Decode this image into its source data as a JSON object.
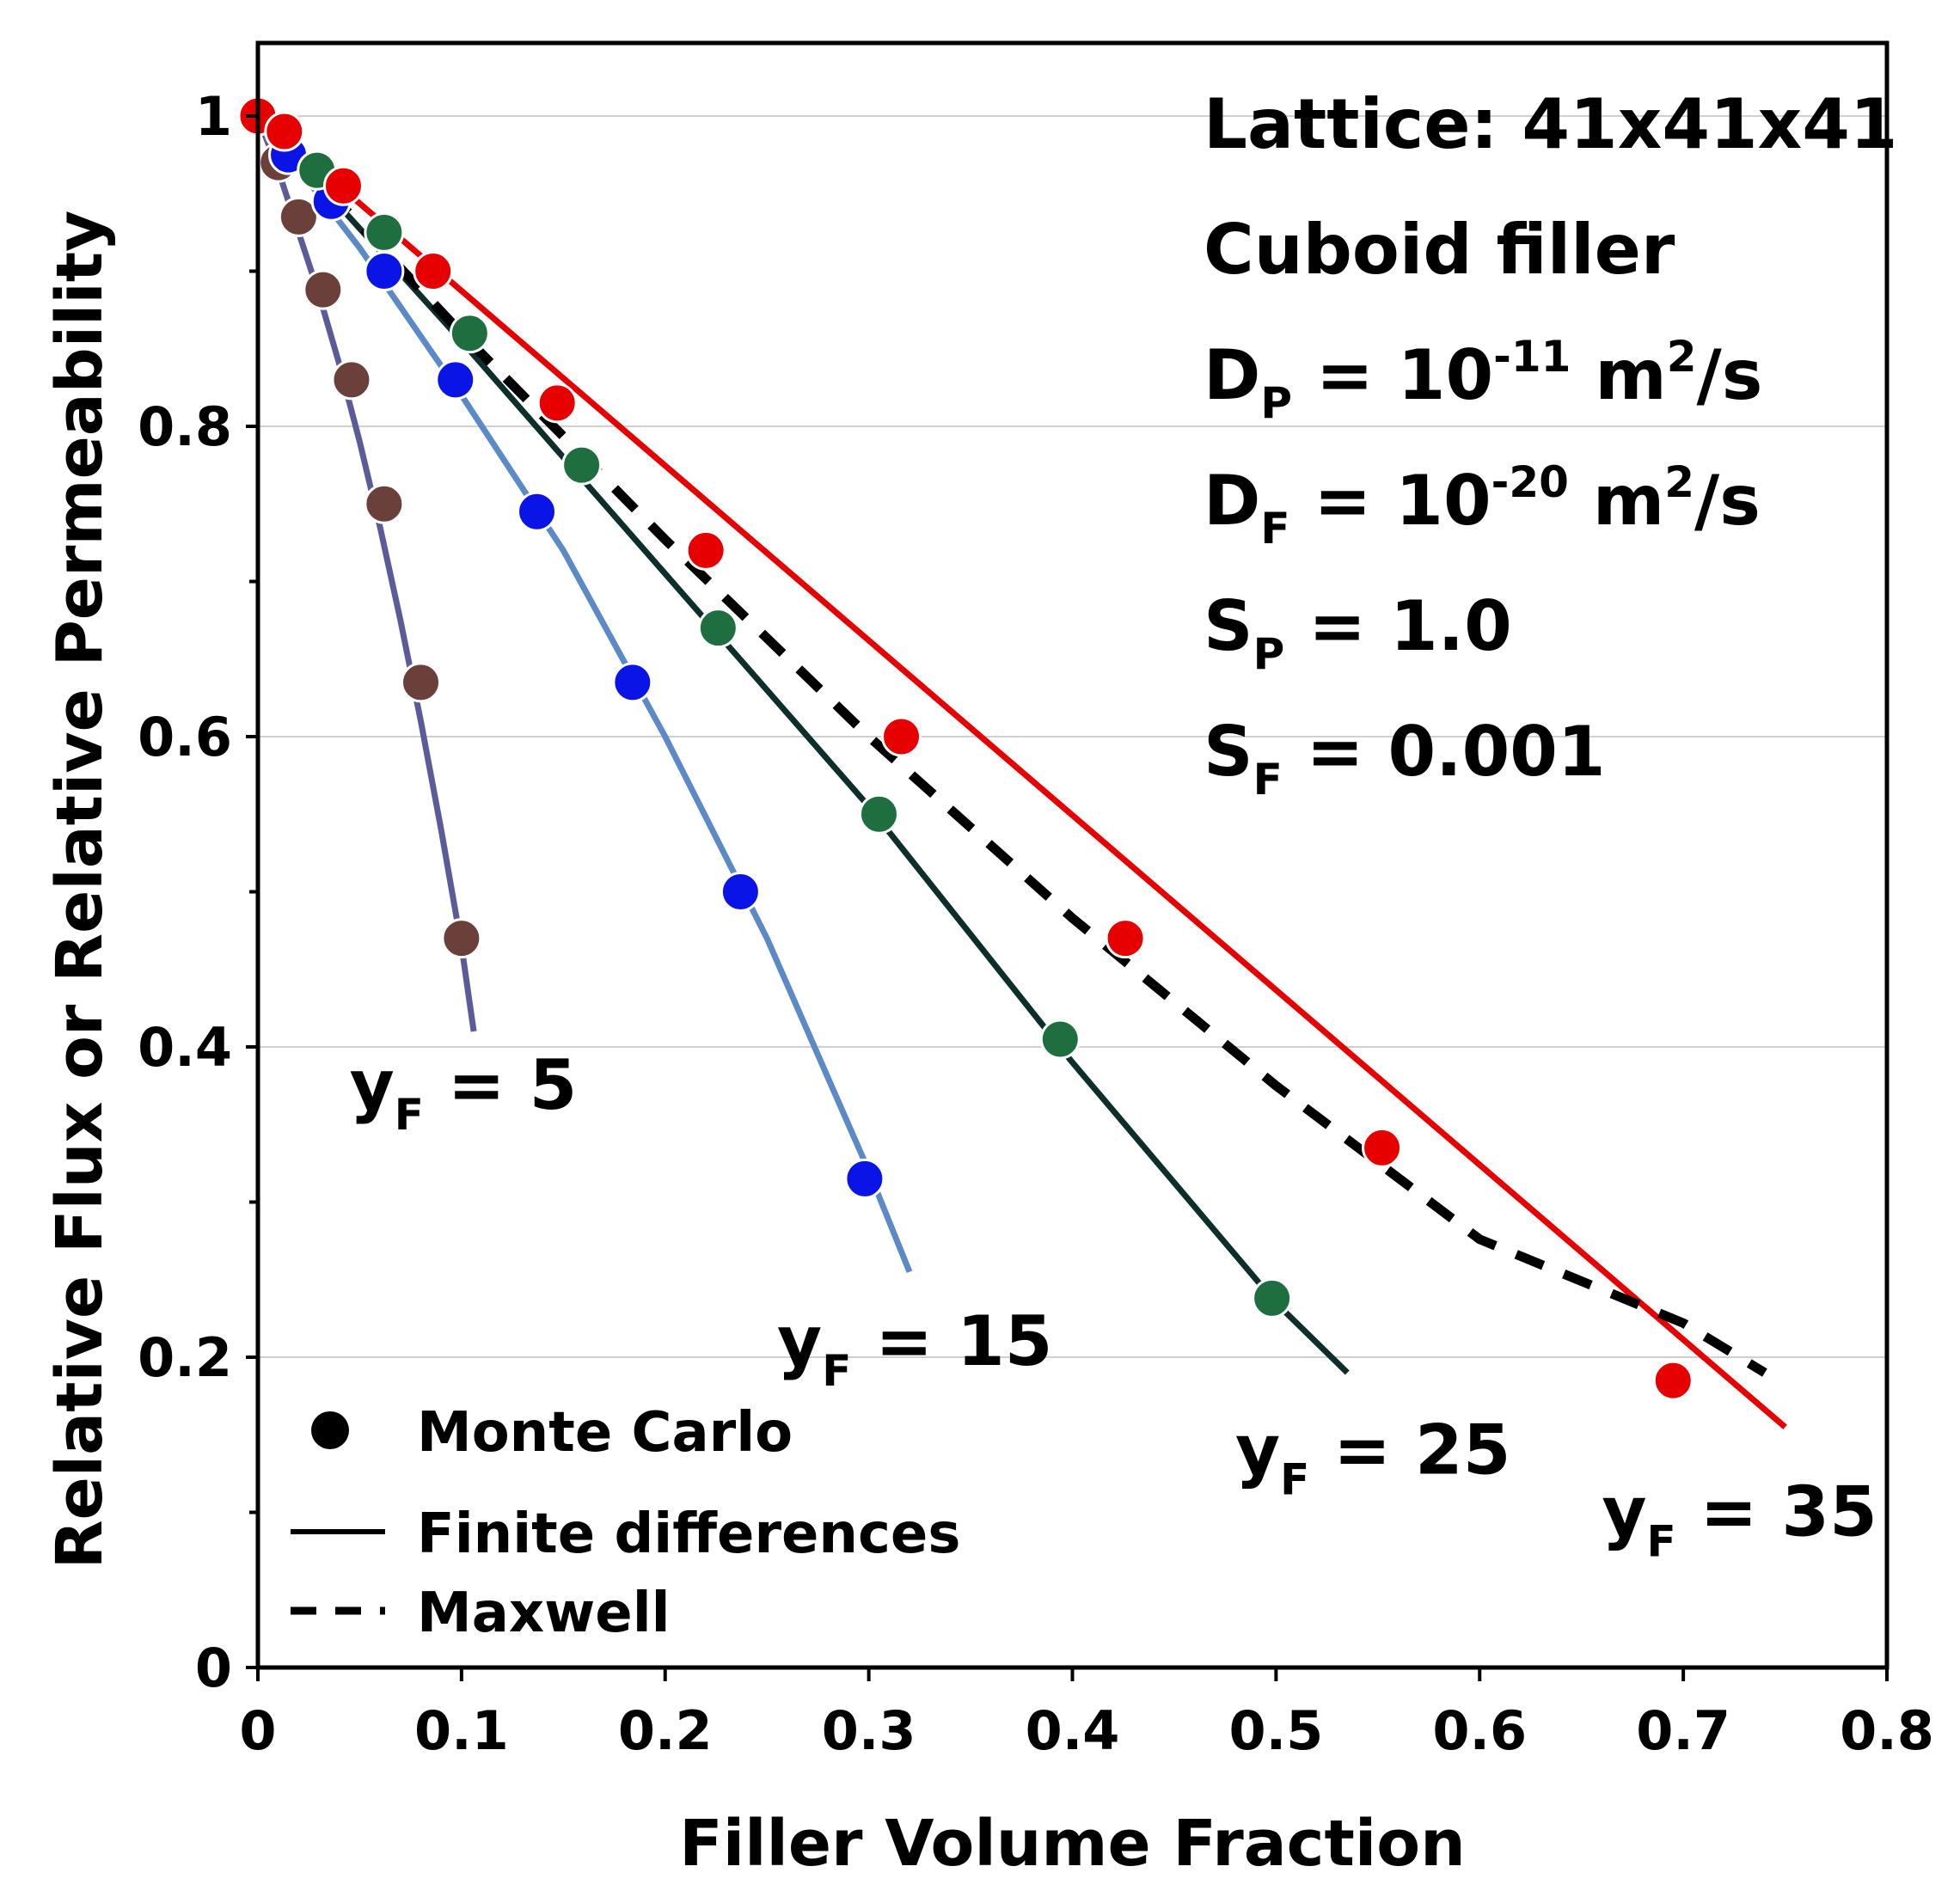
{
  "chart_data": {
    "type": "scatter",
    "xlabel": "Filler Volume Fraction",
    "ylabel": "Relative Flux or Relative Permeability",
    "xlim": [
      0,
      0.8
    ],
    "ylim": [
      0,
      1.0
    ],
    "xticks": [
      "0",
      "0.1",
      "0.2",
      "0.3",
      "0.4",
      "0.5",
      "0.6",
      "0.7",
      "0.8"
    ],
    "yticks": [
      "0",
      "0.2",
      "0.4",
      "0.6",
      "0.8",
      "1"
    ],
    "grid": true,
    "info_lines": [
      {
        "base": "Lattice: 41x41x41",
        "sub": "",
        "after_sub": "",
        "sup": "",
        "rest": "",
        "sup2": "",
        "rest2": ""
      },
      {
        "base": "Cuboid filler",
        "sub": "",
        "after_sub": "",
        "sup": "",
        "rest": "",
        "sup2": "",
        "rest2": ""
      },
      {
        "base": "D",
        "sub": "P",
        "after_sub": " = 10",
        "sup": "-11",
        "rest": " m",
        "sup2": "2",
        "rest2": "/s"
      },
      {
        "base": "D",
        "sub": "F",
        "after_sub": " = 10",
        "sup": "-20",
        "rest": " m",
        "sup2": "2",
        "rest2": "/s"
      },
      {
        "base": "S",
        "sub": "P",
        "after_sub": " = 1.0",
        "sup": "",
        "rest": "",
        "sup2": "",
        "rest2": ""
      },
      {
        "base": "S",
        "sub": "F",
        "after_sub": " = 0.001",
        "sup": "",
        "rest": "",
        "sup2": "",
        "rest2": ""
      }
    ],
    "legend": {
      "position": "bottom-left",
      "entries": [
        "Monte Carlo",
        "Finite differences",
        "Maxwell"
      ]
    },
    "curve_labels": [
      {
        "base": "y",
        "sub": "F",
        "text": " = 5",
        "x": 0.045,
        "y": 0.36
      },
      {
        "base": "y",
        "sub": "F",
        "text": " = 15",
        "x": 0.255,
        "y": 0.195
      },
      {
        "base": "y",
        "sub": "F",
        "text": " = 25",
        "x": 0.48,
        "y": 0.125
      },
      {
        "base": "y",
        "sub": "F",
        "text": " = 35",
        "x": 0.66,
        "y": 0.085
      }
    ],
    "series": [
      {
        "name": "yF = 5",
        "color": "#5b5b9a",
        "marker_color": "#6b3f3a",
        "line_x": [
          0,
          0.01,
          0.02,
          0.03,
          0.04,
          0.05,
          0.06,
          0.07,
          0.08,
          0.09,
          0.1,
          0.106
        ],
        "line_y": [
          1.0,
          0.965,
          0.925,
          0.885,
          0.84,
          0.79,
          0.735,
          0.675,
          0.61,
          0.54,
          0.465,
          0.41
        ],
        "mc_x": [
          0,
          0.01,
          0.02,
          0.032,
          0.046,
          0.062,
          0.08,
          0.1
        ],
        "mc_y": [
          1.0,
          0.97,
          0.935,
          0.888,
          0.83,
          0.75,
          0.635,
          0.47
        ]
      },
      {
        "name": "yF = 15",
        "color": "#5b8ac6",
        "marker_color": "#0a14e6",
        "line_x": [
          0,
          0.05,
          0.1,
          0.15,
          0.2,
          0.25,
          0.3,
          0.32
        ],
        "line_y": [
          1.0,
          0.915,
          0.82,
          0.72,
          0.6,
          0.47,
          0.32,
          0.255
        ],
        "mc_x": [
          0,
          0.015,
          0.036,
          0.062,
          0.097,
          0.137,
          0.184,
          0.237,
          0.298
        ],
        "mc_y": [
          1.0,
          0.975,
          0.945,
          0.9,
          0.83,
          0.745,
          0.635,
          0.5,
          0.315
        ]
      },
      {
        "name": "yF = 25",
        "color": "#0d2e2a",
        "marker_color": "#1f6e3f",
        "line_x": [
          0,
          0.1,
          0.2,
          0.3,
          0.4,
          0.5,
          0.535
        ],
        "line_y": [
          1.0,
          0.855,
          0.705,
          0.555,
          0.39,
          0.235,
          0.19
        ],
        "mc_x": [
          0,
          0.029,
          0.062,
          0.104,
          0.159,
          0.226,
          0.305,
          0.394,
          0.498
        ],
        "mc_y": [
          1.0,
          0.965,
          0.925,
          0.86,
          0.775,
          0.67,
          0.55,
          0.405,
          0.238
        ]
      },
      {
        "name": "yF = 35",
        "color": "#e60000",
        "marker_color": "#e60000",
        "line_x": [
          0,
          0.75
        ],
        "line_y": [
          1.0,
          0.155
        ],
        "mc_x": [
          0,
          0.013,
          0.042,
          0.086,
          0.147,
          0.22,
          0.316,
          0.426,
          0.552,
          0.695
        ],
        "mc_y": [
          1.0,
          0.99,
          0.955,
          0.9,
          0.815,
          0.72,
          0.6,
          0.47,
          0.335,
          0.185
        ]
      },
      {
        "name": "Maxwell",
        "color": "#000000",
        "dashed": true,
        "line_x": [
          0,
          0.1,
          0.2,
          0.3,
          0.4,
          0.5,
          0.6,
          0.7,
          0.74
        ],
        "line_y": [
          1.0,
          0.86,
          0.727,
          0.6,
          0.483,
          0.375,
          0.276,
          0.222,
          0.19
        ]
      }
    ]
  }
}
